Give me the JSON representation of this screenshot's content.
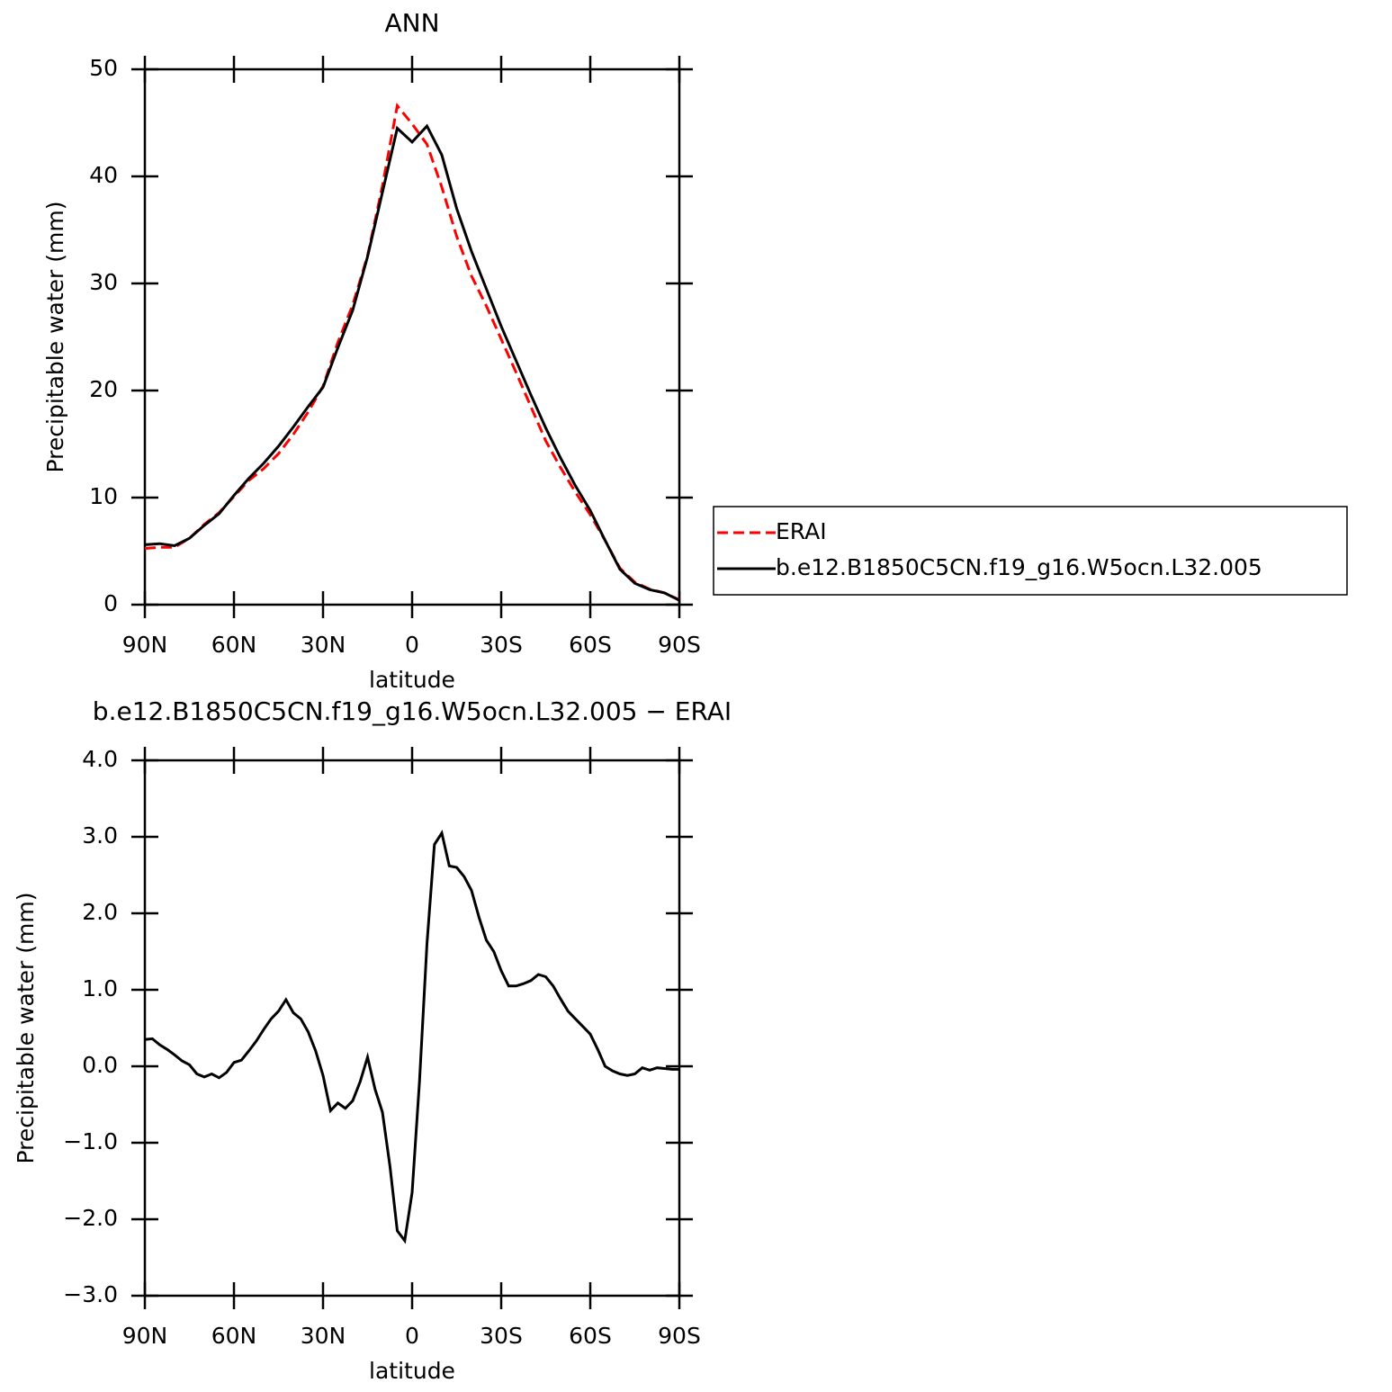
{
  "chart_data": [
    {
      "type": "line",
      "title": "ANN",
      "xlabel": "latitude",
      "ylabel": "Precipitable water (mm)",
      "x": [
        90,
        85,
        80,
        75,
        70,
        65,
        60,
        55,
        50,
        45,
        40,
        35,
        30,
        25,
        20,
        15,
        10,
        5,
        0,
        -5,
        -10,
        -15,
        -20,
        -25,
        -30,
        -35,
        -40,
        -45,
        -50,
        -55,
        -60,
        -65,
        -70,
        -75,
        -80,
        -85,
        -90
      ],
      "series": [
        {
          "name": "ERAI",
          "color": "#ff0000",
          "linestyle": "dashed",
          "values": [
            5.25,
            5.35,
            5.35,
            6.2,
            7.5,
            8.6,
            10.1,
            11.6,
            12.7,
            14.1,
            15.9,
            18.0,
            20.4,
            24.5,
            28.0,
            32.6,
            39.1,
            46.6,
            44.9,
            43,
            39,
            34.4,
            30.7,
            27.9,
            24.8,
            21.7,
            18.5,
            15.3,
            12.8,
            10.5,
            8.4,
            6.0,
            3.4,
            2.1,
            1.45,
            1.1,
            0.45
          ]
        },
        {
          "name": "b.e12.B1850C5CN.f19_g16.W5ocn.L32.005",
          "color": "#000000",
          "linestyle": "solid",
          "values": [
            5.6,
            5.7,
            5.5,
            6.2,
            7.4,
            8.5,
            10.2,
            11.8,
            13.2,
            14.8,
            16.6,
            18.5,
            20.3,
            24,
            27.5,
            32.5,
            38.5,
            44.5,
            43.2,
            44.7,
            42,
            37,
            33,
            29.5,
            26.0,
            22.8,
            19.6,
            16.5,
            13.7,
            11.1,
            8.8,
            6.0,
            3.3,
            2.0,
            1.4,
            1.1,
            0.4
          ]
        }
      ],
      "xlim": [
        90,
        -90
      ],
      "xticks": [
        {
          "value": 90,
          "label": "90N"
        },
        {
          "value": 60,
          "label": "60N"
        },
        {
          "value": 30,
          "label": "30N"
        },
        0,
        {
          "value": -30,
          "label": "30S"
        },
        {
          "value": -60,
          "label": "60S"
        },
        {
          "value": -90,
          "label": "90S"
        }
      ],
      "ylim": [
        0,
        50
      ],
      "yticks": [
        0,
        10,
        20,
        30,
        40,
        50
      ],
      "legend": "outside-right"
    },
    {
      "type": "line",
      "title": "b.e12.B1850C5CN.f19_g16.W5ocn.L32.005 − ERAI",
      "xlabel": "latitude",
      "ylabel": "Precipitable water (mm)",
      "x": [
        90,
        87.5,
        85,
        82.5,
        80,
        77.5,
        75,
        72.5,
        70,
        67.5,
        65,
        62.5,
        60,
        57.5,
        55,
        52.5,
        50,
        47.5,
        45,
        42.5,
        40,
        37.5,
        35,
        32.5,
        30,
        27.5,
        25,
        22.5,
        20,
        17.5,
        15,
        12.5,
        10,
        7.5,
        5,
        2.5,
        0,
        -2.5,
        -5,
        -7.5,
        -10,
        -12.5,
        -15,
        -17.5,
        -20,
        -22.5,
        -25,
        -27.5,
        -30,
        -32.5,
        -35,
        -37.5,
        -40,
        -42.5,
        -45,
        -47.5,
        -50,
        -52.5,
        -55,
        -57.5,
        -60,
        -62.5,
        -65,
        -67.5,
        -70,
        -72.5,
        -75,
        -77.5,
        -80,
        -82.5,
        -85,
        -87.5,
        -90
      ],
      "series": [
        {
          "color": "#000000",
          "linestyle": "solid",
          "values": [
            0.35,
            0.36,
            0.28,
            0.22,
            0.15,
            0.07,
            0.02,
            -0.1,
            -0.14,
            -0.1,
            -0.15,
            -0.08,
            0.05,
            0.08,
            0.2,
            0.33,
            0.48,
            0.62,
            0.72,
            0.87,
            0.7,
            0.62,
            0.45,
            0.2,
            -0.12,
            -0.58,
            -0.48,
            -0.55,
            -0.45,
            -0.2,
            0.12,
            -0.3,
            -0.6,
            -1.3,
            -2.15,
            -2.28,
            -1.65,
            -0.2,
            1.6,
            2.9,
            3.05,
            2.62,
            2.6,
            2.48,
            2.3,
            1.95,
            1.65,
            1.5,
            1.25,
            1.05,
            1.05,
            1.08,
            1.12,
            1.2,
            1.17,
            1.05,
            0.88,
            0.72,
            0.62,
            0.52,
            0.42,
            0.22,
            0.0,
            -0.06,
            -0.1,
            -0.12,
            -0.1,
            -0.02,
            -0.05,
            -0.02,
            -0.03,
            -0.04,
            -0.04
          ]
        }
      ],
      "xlim": [
        90,
        -90
      ],
      "xticks": [
        {
          "value": 90,
          "label": "90N"
        },
        {
          "value": 60,
          "label": "60N"
        },
        {
          "value": 30,
          "label": "30N"
        },
        0,
        {
          "value": -30,
          "label": "30S"
        },
        {
          "value": -60,
          "label": "60S"
        },
        {
          "value": -90,
          "label": "90S"
        }
      ],
      "ylim": [
        -3,
        4
      ],
      "yticks": [
        {
          "value": -3,
          "label": "−3.0"
        },
        {
          "value": -2,
          "label": "−2.0"
        },
        {
          "value": -1,
          "label": "−1.0"
        },
        {
          "value": 0,
          "label": "0.0"
        },
        {
          "value": 1,
          "label": "1.0"
        },
        {
          "value": 2,
          "label": "2.0"
        },
        {
          "value": 3,
          "label": "3.0"
        },
        {
          "value": 4,
          "label": "4.0"
        }
      ]
    }
  ]
}
